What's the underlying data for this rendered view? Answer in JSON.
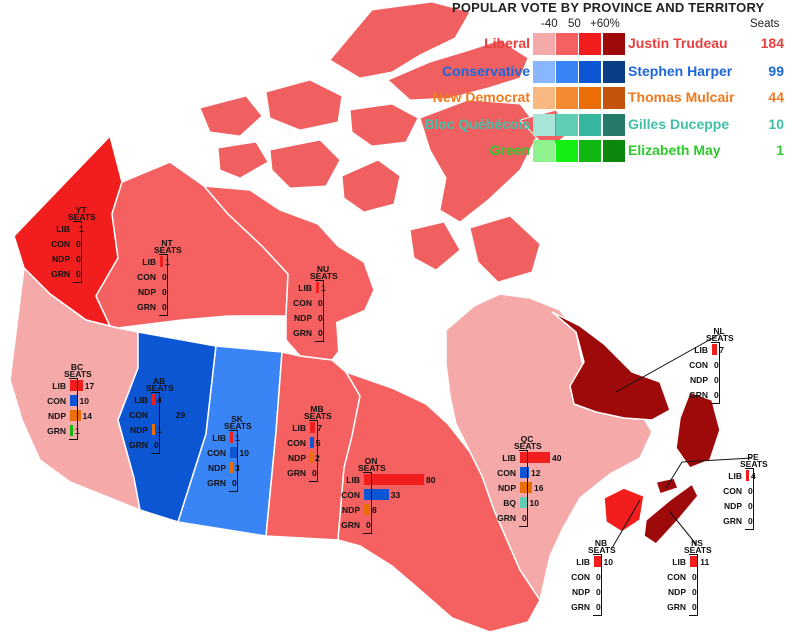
{
  "title": "POPULAR VOTE BY PROVINCE AND TERRITORY",
  "legend_headers": [
    "-40",
    "50",
    "+60%"
  ],
  "seats_header": "Seats",
  "parties": [
    {
      "name": "Liberal",
      "leader": "Justin Trudeau",
      "seats": "184",
      "color": "#e8403f",
      "shades": [
        "#f5a9a9",
        "#f56060",
        "#f21e1e",
        "#9e0a0a"
      ]
    },
    {
      "name": "Conservative",
      "leader": "Stephen Harper",
      "seats": "99",
      "color": "#1d67d9",
      "shades": [
        "#8ab6ff",
        "#3a85f6",
        "#0d56d3",
        "#0a3e86"
      ]
    },
    {
      "name": "New Democrat",
      "leader": "Thomas Mulcair",
      "seats": "44",
      "color": "#f07a20",
      "shades": [
        "#f8b87f",
        "#f48a32",
        "#ea6d06",
        "#c4540c"
      ]
    },
    {
      "name": "Bloc Québécois",
      "leader": "Gilles Duceppe",
      "seats": "10",
      "color": "#40c0a8",
      "shades": [
        "#a8e4d8",
        "#60cdb6",
        "#36b59f",
        "#257a6c"
      ]
    },
    {
      "name": "Green",
      "leader": "Elizabeth May",
      "seats": "1",
      "color": "#2ec82e",
      "shades": [
        "#8ef28e",
        "#14ee14",
        "#11b711",
        "#0b870b"
      ]
    }
  ],
  "regions": [
    {
      "name": "YT",
      "seats_label": "SEATS",
      "results": [
        [
          "LIB",
          "1"
        ],
        [
          "CON",
          "0"
        ],
        [
          "NDP",
          "0"
        ],
        [
          "GRN",
          "0"
        ]
      ]
    },
    {
      "name": "NT",
      "seats_label": "SEATS",
      "results": [
        [
          "LIB",
          "1"
        ],
        [
          "CON",
          "0"
        ],
        [
          "NDP",
          "0"
        ],
        [
          "GRN",
          "0"
        ]
      ]
    },
    {
      "name": "NU",
      "seats_label": "SEATS",
      "results": [
        [
          "LIB",
          "1"
        ],
        [
          "CON",
          "0"
        ],
        [
          "NDP",
          "0"
        ],
        [
          "GRN",
          "0"
        ]
      ]
    },
    {
      "name": "BC",
      "seats_label": "SEATS",
      "results": [
        [
          "LIB",
          "17"
        ],
        [
          "CON",
          "10"
        ],
        [
          "NDP",
          "14"
        ],
        [
          "GRN",
          "1"
        ]
      ]
    },
    {
      "name": "AB",
      "seats_label": "SEATS",
      "results": [
        [
          "LIB",
          "4"
        ],
        [
          "CON",
          "29"
        ],
        [
          "NDP",
          "1"
        ],
        [
          "GRN",
          "0"
        ]
      ]
    },
    {
      "name": "SK",
      "seats_label": "SEATS",
      "results": [
        [
          "LIB",
          "1"
        ],
        [
          "CON",
          "10"
        ],
        [
          "NDP",
          "3"
        ],
        [
          "GRN",
          "0"
        ]
      ]
    },
    {
      "name": "MB",
      "seats_label": "SEATS",
      "results": [
        [
          "LIB",
          "7"
        ],
        [
          "CON",
          "5"
        ],
        [
          "NDP",
          "2"
        ],
        [
          "GRN",
          "0"
        ]
      ]
    },
    {
      "name": "ON",
      "seats_label": "SEATS",
      "results": [
        [
          "LIB",
          "80"
        ],
        [
          "CON",
          "33"
        ],
        [
          "NDP",
          "8"
        ],
        [
          "GRN",
          "0"
        ]
      ]
    },
    {
      "name": "QC",
      "seats_label": "SEATS",
      "results": [
        [
          "LIB",
          "40"
        ],
        [
          "CON",
          "12"
        ],
        [
          "NDP",
          "16"
        ],
        [
          "BQ",
          "10"
        ],
        [
          "GRN",
          "0"
        ]
      ]
    },
    {
      "name": "NL",
      "seats_label": "SEATS",
      "results": [
        [
          "LIB",
          "7"
        ],
        [
          "CON",
          "0"
        ],
        [
          "NDP",
          "0"
        ],
        [
          "GRN",
          "0"
        ]
      ]
    },
    {
      "name": "PE",
      "seats_label": "SEATS",
      "results": [
        [
          "LIB",
          "4"
        ],
        [
          "CON",
          "0"
        ],
        [
          "NDP",
          "0"
        ],
        [
          "GRN",
          "0"
        ]
      ]
    },
    {
      "name": "NB",
      "seats_label": "SEATS",
      "results": [
        [
          "LIB",
          "10"
        ],
        [
          "CON",
          "0"
        ],
        [
          "NDP",
          "0"
        ],
        [
          "GRN",
          "0"
        ]
      ]
    },
    {
      "name": "NS",
      "seats_label": "SEATS",
      "results": [
        [
          "LIB",
          "11"
        ],
        [
          "CON",
          "0"
        ],
        [
          "NDP",
          "0"
        ],
        [
          "GRN",
          "0"
        ]
      ]
    }
  ]
}
